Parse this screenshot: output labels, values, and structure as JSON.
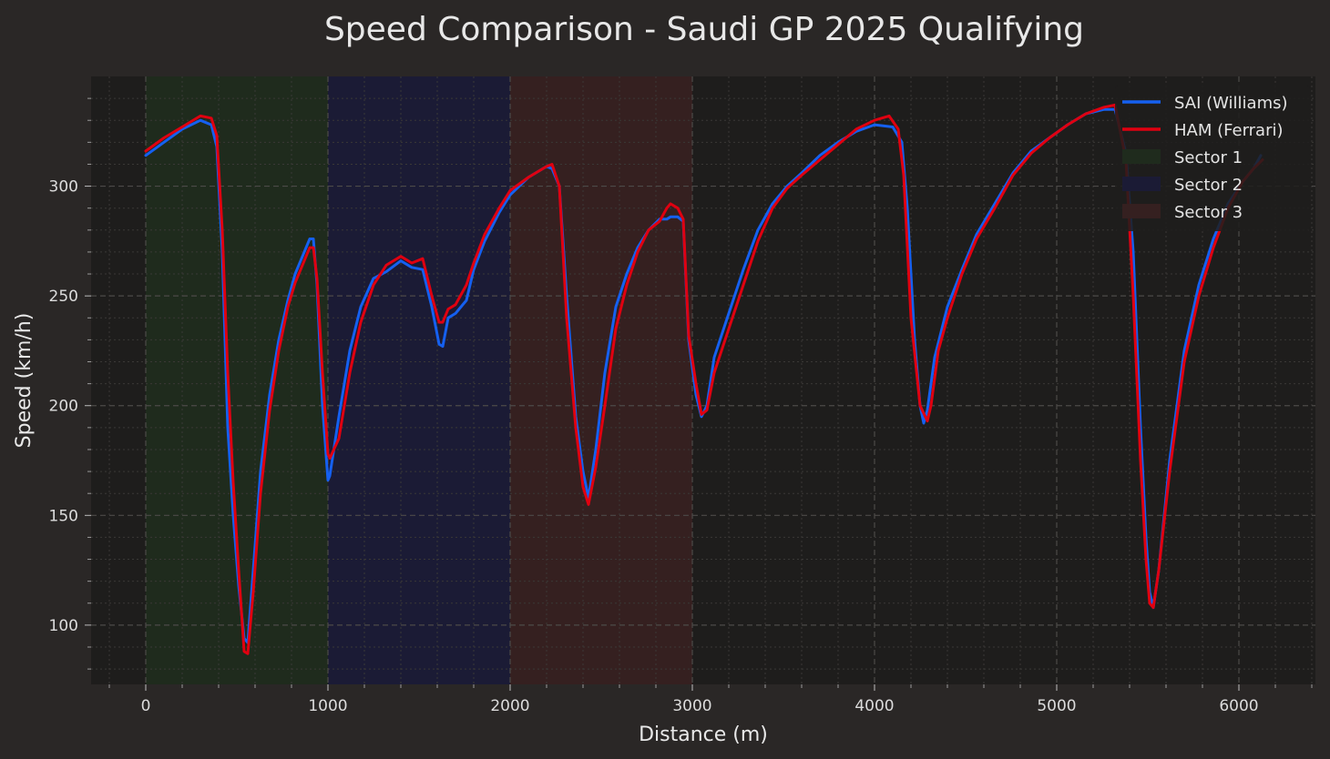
{
  "chart_data": {
    "type": "line",
    "title": "Speed Comparison - Saudi GP 2025 Qualifying",
    "xlabel": "Distance (m)",
    "ylabel": "Speed (km/h)",
    "xlim": [
      -300,
      6420
    ],
    "ylim": [
      73,
      350
    ],
    "x_ticks": [
      0,
      1000,
      2000,
      3000,
      4000,
      5000,
      6000
    ],
    "y_ticks": [
      100,
      150,
      200,
      250,
      300
    ],
    "grid": true,
    "legend_position": "top-right",
    "sectors": [
      {
        "name": "Sector 1",
        "start": 0,
        "end": 1000,
        "color": "#1f2b1d"
      },
      {
        "name": "Sector 2",
        "start": 1000,
        "end": 2000,
        "color": "#1b1b35"
      },
      {
        "name": "Sector 3",
        "start": 2000,
        "end": 3000,
        "color": "#352020"
      }
    ],
    "series": [
      {
        "name": "SAI (Williams)",
        "color": "#1560f0",
        "points": [
          [
            0,
            314
          ],
          [
            100,
            320
          ],
          [
            200,
            326
          ],
          [
            300,
            330
          ],
          [
            360,
            328
          ],
          [
            390,
            318
          ],
          [
            420,
            270
          ],
          [
            450,
            190
          ],
          [
            480,
            150
          ],
          [
            510,
            118
          ],
          [
            540,
            94
          ],
          [
            560,
            92
          ],
          [
            590,
            125
          ],
          [
            630,
            170
          ],
          [
            680,
            205
          ],
          [
            730,
            230
          ],
          [
            780,
            248
          ],
          [
            820,
            260
          ],
          [
            870,
            270
          ],
          [
            900,
            276
          ],
          [
            920,
            276
          ],
          [
            940,
            255
          ],
          [
            970,
            200
          ],
          [
            1000,
            166
          ],
          [
            1010,
            168
          ],
          [
            1060,
            195
          ],
          [
            1120,
            225
          ],
          [
            1180,
            245
          ],
          [
            1250,
            258
          ],
          [
            1320,
            261
          ],
          [
            1400,
            266
          ],
          [
            1460,
            263
          ],
          [
            1520,
            262
          ],
          [
            1570,
            245
          ],
          [
            1610,
            228
          ],
          [
            1630,
            227
          ],
          [
            1660,
            240
          ],
          [
            1700,
            242
          ],
          [
            1760,
            248
          ],
          [
            1800,
            262
          ],
          [
            1860,
            275
          ],
          [
            1940,
            288
          ],
          [
            2000,
            296
          ],
          [
            2100,
            304
          ],
          [
            2200,
            309
          ],
          [
            2230,
            308
          ],
          [
            2270,
            300
          ],
          [
            2310,
            250
          ],
          [
            2360,
            195
          ],
          [
            2400,
            170
          ],
          [
            2430,
            158
          ],
          [
            2470,
            180
          ],
          [
            2520,
            215
          ],
          [
            2580,
            245
          ],
          [
            2640,
            260
          ],
          [
            2700,
            272
          ],
          [
            2760,
            280
          ],
          [
            2820,
            285
          ],
          [
            2860,
            285
          ],
          [
            2880,
            286
          ],
          [
            2920,
            286
          ],
          [
            2950,
            284
          ],
          [
            2980,
            230
          ],
          [
            3020,
            205
          ],
          [
            3050,
            195
          ],
          [
            3080,
            200
          ],
          [
            3120,
            222
          ],
          [
            3200,
            242
          ],
          [
            3280,
            262
          ],
          [
            3360,
            280
          ],
          [
            3440,
            292
          ],
          [
            3520,
            300
          ],
          [
            3600,
            306
          ],
          [
            3700,
            314
          ],
          [
            3800,
            320
          ],
          [
            3900,
            325
          ],
          [
            4000,
            328
          ],
          [
            4100,
            327
          ],
          [
            4150,
            320
          ],
          [
            4180,
            290
          ],
          [
            4220,
            230
          ],
          [
            4250,
            200
          ],
          [
            4270,
            192
          ],
          [
            4290,
            198
          ],
          [
            4330,
            222
          ],
          [
            4400,
            245
          ],
          [
            4480,
            262
          ],
          [
            4560,
            278
          ],
          [
            4660,
            292
          ],
          [
            4760,
            306
          ],
          [
            4860,
            316
          ],
          [
            4960,
            322
          ],
          [
            5060,
            328
          ],
          [
            5160,
            333
          ],
          [
            5260,
            335
          ],
          [
            5320,
            335
          ],
          [
            5380,
            315
          ],
          [
            5420,
            270
          ],
          [
            5460,
            190
          ],
          [
            5490,
            140
          ],
          [
            5510,
            115
          ],
          [
            5530,
            108
          ],
          [
            5560,
            125
          ],
          [
            5620,
            175
          ],
          [
            5700,
            225
          ],
          [
            5780,
            255
          ],
          [
            5860,
            276
          ],
          [
            5940,
            292
          ],
          [
            6020,
            302
          ],
          [
            6080,
            308
          ],
          [
            6120,
            314
          ]
        ]
      },
      {
        "name": "HAM (Ferrari)",
        "color": "#e00010",
        "points": [
          [
            0,
            316
          ],
          [
            100,
            322
          ],
          [
            200,
            327
          ],
          [
            300,
            332
          ],
          [
            360,
            331
          ],
          [
            390,
            323
          ],
          [
            420,
            280
          ],
          [
            450,
            215
          ],
          [
            480,
            165
          ],
          [
            510,
            125
          ],
          [
            540,
            88
          ],
          [
            560,
            87
          ],
          [
            590,
            115
          ],
          [
            630,
            160
          ],
          [
            680,
            198
          ],
          [
            730,
            225
          ],
          [
            780,
            245
          ],
          [
            820,
            256
          ],
          [
            870,
            266
          ],
          [
            900,
            272
          ],
          [
            920,
            272
          ],
          [
            940,
            258
          ],
          [
            970,
            215
          ],
          [
            1000,
            178
          ],
          [
            1010,
            176
          ],
          [
            1060,
            185
          ],
          [
            1120,
            215
          ],
          [
            1180,
            238
          ],
          [
            1250,
            255
          ],
          [
            1320,
            264
          ],
          [
            1400,
            268
          ],
          [
            1460,
            265
          ],
          [
            1520,
            267
          ],
          [
            1570,
            250
          ],
          [
            1610,
            238
          ],
          [
            1630,
            238
          ],
          [
            1660,
            244
          ],
          [
            1700,
            246
          ],
          [
            1760,
            255
          ],
          [
            1800,
            265
          ],
          [
            1860,
            278
          ],
          [
            1940,
            290
          ],
          [
            2000,
            298
          ],
          [
            2100,
            304
          ],
          [
            2200,
            309
          ],
          [
            2230,
            310
          ],
          [
            2270,
            300
          ],
          [
            2310,
            240
          ],
          [
            2360,
            190
          ],
          [
            2400,
            163
          ],
          [
            2430,
            155
          ],
          [
            2470,
            172
          ],
          [
            2520,
            200
          ],
          [
            2580,
            235
          ],
          [
            2640,
            255
          ],
          [
            2700,
            270
          ],
          [
            2760,
            280
          ],
          [
            2820,
            284
          ],
          [
            2860,
            290
          ],
          [
            2880,
            292
          ],
          [
            2920,
            290
          ],
          [
            2950,
            285
          ],
          [
            2980,
            232
          ],
          [
            3020,
            210
          ],
          [
            3050,
            196
          ],
          [
            3080,
            198
          ],
          [
            3120,
            215
          ],
          [
            3200,
            235
          ],
          [
            3280,
            255
          ],
          [
            3360,
            275
          ],
          [
            3440,
            290
          ],
          [
            3520,
            299
          ],
          [
            3600,
            305
          ],
          [
            3700,
            312
          ],
          [
            3800,
            319
          ],
          [
            3900,
            326
          ],
          [
            4000,
            330
          ],
          [
            4080,
            332
          ],
          [
            4130,
            326
          ],
          [
            4160,
            305
          ],
          [
            4200,
            240
          ],
          [
            4250,
            200
          ],
          [
            4290,
            193
          ],
          [
            4310,
            200
          ],
          [
            4350,
            225
          ],
          [
            4400,
            240
          ],
          [
            4480,
            260
          ],
          [
            4560,
            276
          ],
          [
            4660,
            290
          ],
          [
            4760,
            305
          ],
          [
            4860,
            315
          ],
          [
            4960,
            322
          ],
          [
            5060,
            328
          ],
          [
            5160,
            333
          ],
          [
            5260,
            336
          ],
          [
            5320,
            337
          ],
          [
            5380,
            312
          ],
          [
            5420,
            250
          ],
          [
            5460,
            175
          ],
          [
            5490,
            130
          ],
          [
            5510,
            110
          ],
          [
            5530,
            108
          ],
          [
            5560,
            125
          ],
          [
            5620,
            170
          ],
          [
            5700,
            220
          ],
          [
            5780,
            250
          ],
          [
            5860,
            272
          ],
          [
            5940,
            290
          ],
          [
            6020,
            302
          ],
          [
            6080,
            308
          ],
          [
            6130,
            312
          ]
        ]
      }
    ]
  }
}
